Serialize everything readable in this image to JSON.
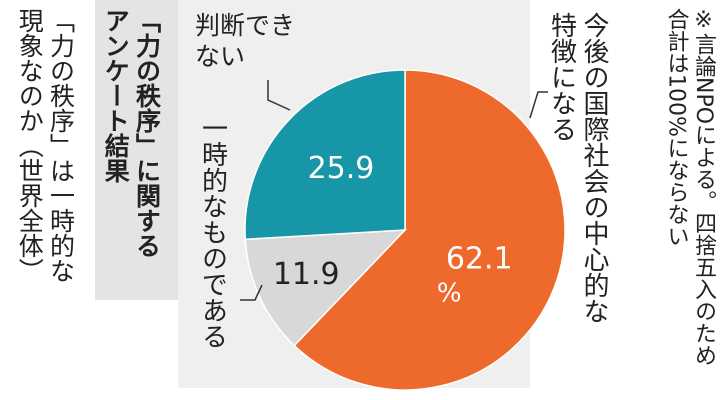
{
  "chart_data": {
    "type": "pie",
    "title": "「力の秩序」に関するアンケート結果",
    "subtitle": "「力の秩序」は一時的な現象なのか（世界全体）",
    "note": "※言論NPOによる。四捨五入のため合計は100%にならない",
    "categories": [
      "今後の国際社会の中心的な特徴になる",
      "一時的なものである",
      "判断できない"
    ],
    "values": [
      62.1,
      11.9,
      25.9
    ],
    "value_unit": "%",
    "colors": [
      "#ee6a2c",
      "#d8d8d8",
      "#1696a6"
    ],
    "label_colors": [
      "#ffffff",
      "#222222",
      "#ffffff"
    ]
  }
}
